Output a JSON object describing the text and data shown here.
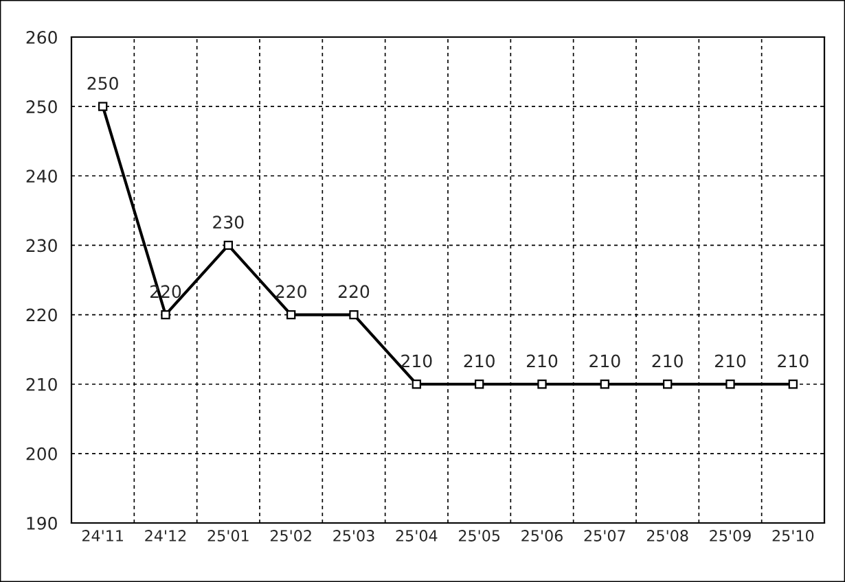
{
  "chart_data": {
    "type": "line",
    "categories": [
      "24'11",
      "24'12",
      "25'01",
      "25'02",
      "25'03",
      "25'04",
      "25'05",
      "25'06",
      "25'07",
      "25'08",
      "25'09",
      "25'10"
    ],
    "series": [
      {
        "color": "#000000",
        "values": [
          250,
          220,
          230,
          220,
          220,
          210,
          210,
          210,
          210,
          210,
          210,
          210
        ]
      }
    ],
    "ylim": [
      190,
      260
    ],
    "yticks": [
      190,
      200,
      210,
      220,
      230,
      240,
      250,
      260
    ],
    "grid": true,
    "marker": "square",
    "line_style": "solid",
    "data_labels": true
  }
}
